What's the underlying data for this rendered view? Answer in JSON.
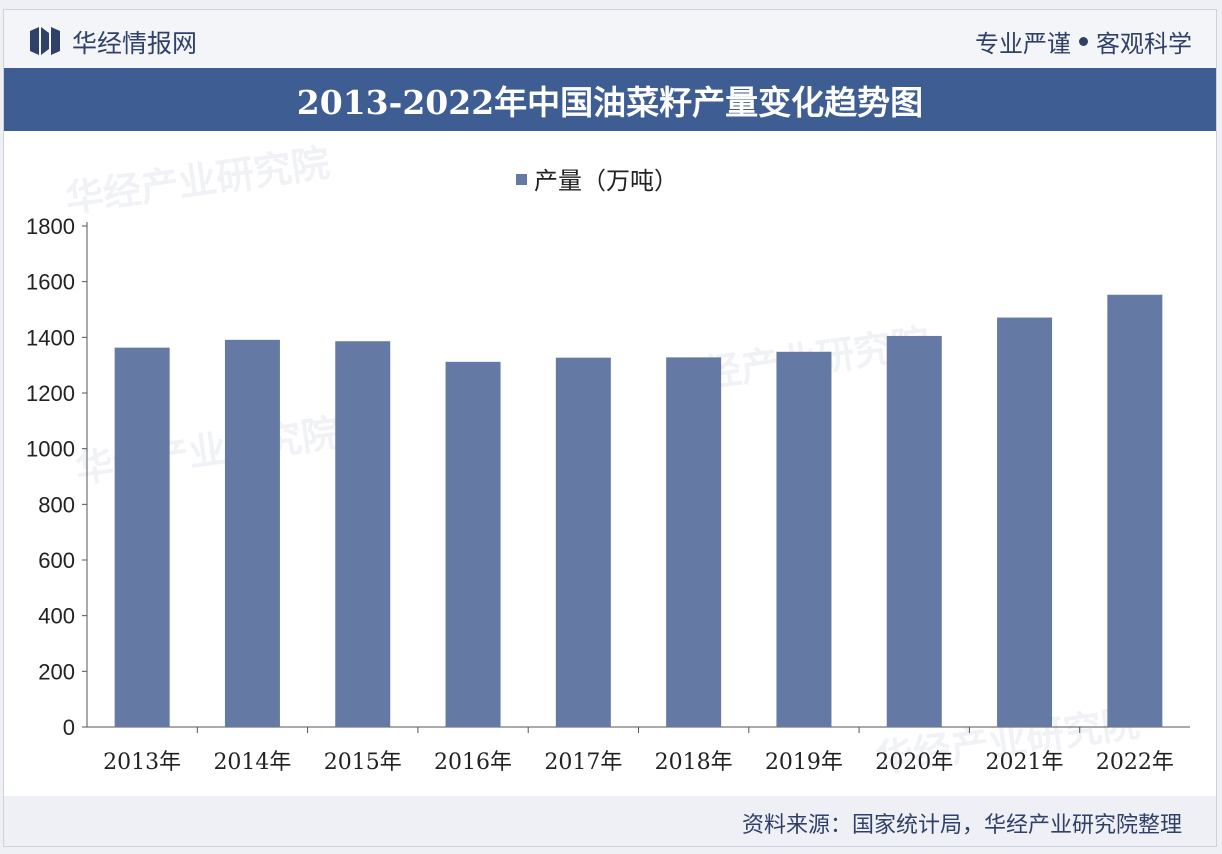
{
  "header": {
    "brand": "华经情报网",
    "slogan_left": "专业严谨",
    "slogan_right": "客观科学"
  },
  "colors": {
    "bar": "#6479a3",
    "title_bg": "#3e5d93",
    "text": "#2f4168"
  },
  "chart_data": {
    "type": "bar",
    "title": "2013-2022年中国油菜籽产量变化趋势图",
    "legend": [
      "产量（万吨）"
    ],
    "legend_position": "top-center",
    "categories": [
      "2013年",
      "2014年",
      "2015年",
      "2016年",
      "2017年",
      "2018年",
      "2019年",
      "2020年",
      "2021年",
      "2022年"
    ],
    "series": [
      {
        "name": "产量（万吨）",
        "values": [
          1363,
          1391,
          1386,
          1312,
          1327,
          1328,
          1348,
          1405,
          1471,
          1553
        ]
      }
    ],
    "yticks": [
      "0",
      "200",
      "400",
      "600",
      "800",
      "1000",
      "1200",
      "1400",
      "1600",
      "1800"
    ],
    "ylim": [
      0,
      1800
    ],
    "grid": false
  },
  "footer": {
    "source": "资料来源：国家统计局，华经产业研究院整理"
  },
  "watermark_text": "华经产业研究院"
}
